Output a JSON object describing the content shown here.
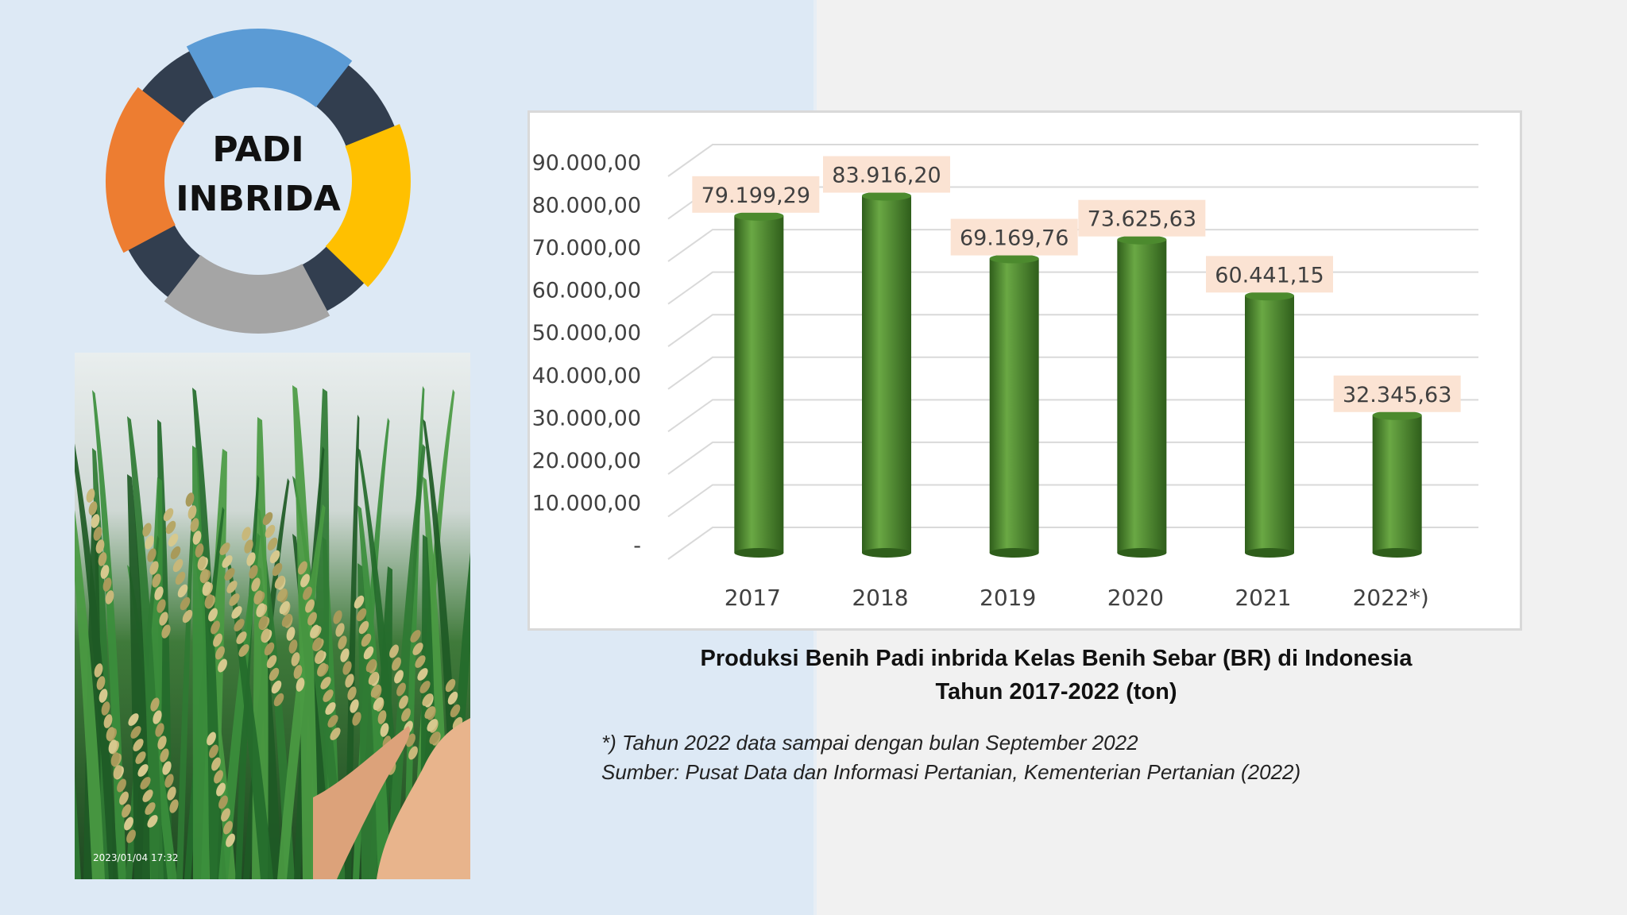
{
  "logo": {
    "line1": "PADI",
    "line2": "INBRIDA"
  },
  "photo": {
    "timestamp": "2023/01/04 17:32"
  },
  "caption": {
    "line1": "Produksi Benih Padi inbrida Kelas Benih Sebar (BR) di Indonesia",
    "line2": "Tahun  2017-2022 (ton)"
  },
  "notes": {
    "line1": "*) Tahun 2022 data sampai dengan bulan September 2022",
    "line2": "Sumber: Pusat Data dan Informasi Pertanian, Kementerian Pertanian (2022)"
  },
  "colors": {
    "bar": "#4c8a2e",
    "bar_dark": "#2f5e1b",
    "bar_light": "#6aa844",
    "label_bg": "#fbe3d3",
    "logo_blue": "#5b9bd5",
    "logo_orange": "#ed7d31",
    "logo_yellow": "#ffc000",
    "logo_gray": "#a5a5a5",
    "logo_navy": "#323e4f"
  },
  "chart_data": {
    "type": "bar",
    "style": "3d-cylinder",
    "categories": [
      "2017",
      "2018",
      "2019",
      "2020",
      "2021",
      "2022*)"
    ],
    "values": [
      79199.29,
      83916.2,
      69169.76,
      73625.63,
      60441.15,
      32345.63
    ],
    "value_labels": [
      "79.199,29",
      "83.916,20",
      "69.169,76",
      "73.625,63",
      "60.441,15",
      "32.345,63"
    ],
    "yticks": [
      "-",
      "10.000,00",
      "20.000,00",
      "30.000,00",
      "40.000,00",
      "50.000,00",
      "60.000,00",
      "70.000,00",
      "80.000,00",
      "90.000,00"
    ],
    "ylim": [
      0,
      90000
    ],
    "grid": true,
    "legend": "none",
    "title": "",
    "xlabel": "",
    "ylabel": ""
  }
}
